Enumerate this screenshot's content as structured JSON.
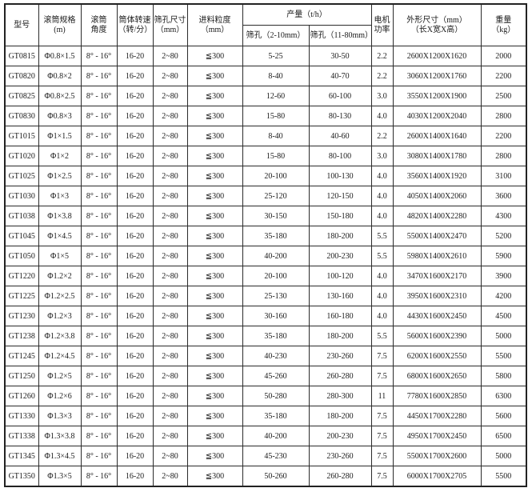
{
  "table": {
    "headers": {
      "model": "型号",
      "drum_spec_line1": "滚筒规格",
      "drum_spec_line2": "(m)",
      "drum_angle_line1": "滚筒",
      "drum_angle_line2": "角度",
      "speed_line1": "筒体转速",
      "speed_line2": "（转/分）",
      "hole_line1": "筛孔尺寸",
      "hole_line2": "（mm）",
      "feed_line1": "进料粒度",
      "feed_line2": "（mm）",
      "output_group": "产量（t/h）",
      "output_sub1": "筛孔（2-10mm）",
      "output_sub2": "筛孔（11-80mm）",
      "power_line1": "电机",
      "power_line2": "功率",
      "dims_line1": "外形尺寸（mm）",
      "dims_line2": "（长X宽X高）",
      "weight_line1": "重量",
      "weight_line2": "（kg）"
    },
    "rows": [
      [
        "GT0815",
        "Φ0.8×1.5",
        "8° - 16°",
        "16-20",
        "2~80",
        "≦300",
        "5-25",
        "30-50",
        "2.2",
        "2600X1200X1620",
        "2000"
      ],
      [
        "GT0820",
        "Φ0.8×2",
        "8° - 16°",
        "16-20",
        "2~80",
        "≦300",
        "8-40",
        "40-70",
        "2.2",
        "3060X1200X1760",
        "2200"
      ],
      [
        "GT0825",
        "Φ0.8×2.5",
        "8° - 16°",
        "16-20",
        "2~80",
        "≦300",
        "12-60",
        "60-100",
        "3.0",
        "3550X1200X1900",
        "2500"
      ],
      [
        "GT0830",
        "Φ0.8×3",
        "8° - 16°",
        "16-20",
        "2~80",
        "≦300",
        "15-80",
        "80-130",
        "4.0",
        "4030X1200X2040",
        "2800"
      ],
      [
        "GT1015",
        "Φ1×1.5",
        "8° - 16°",
        "16-20",
        "2~80",
        "≦300",
        "8-40",
        "40-60",
        "2.2",
        "2600X1400X1640",
        "2200"
      ],
      [
        "GT1020",
        "Φ1×2",
        "8° - 16°",
        "16-20",
        "2~80",
        "≦300",
        "15-80",
        "80-100",
        "3.0",
        "3080X1400X1780",
        "2800"
      ],
      [
        "GT1025",
        "Φ1×2.5",
        "8° - 16°",
        "16-20",
        "2~80",
        "≦300",
        "20-100",
        "100-130",
        "4.0",
        "3560X1400X1920",
        "3100"
      ],
      [
        "GT1030",
        "Φ1×3",
        "8° - 16°",
        "16-20",
        "2~80",
        "≦300",
        "25-120",
        "120-150",
        "4.0",
        "4050X1400X2060",
        "3600"
      ],
      [
        "GT1038",
        "Φ1×3.8",
        "8° - 16°",
        "16-20",
        "2~80",
        "≦300",
        "30-150",
        "150-180",
        "4.0",
        "4820X1400X2280",
        "4300"
      ],
      [
        "GT1045",
        "Φ1×4.5",
        "8° - 16°",
        "16-20",
        "2~80",
        "≦300",
        "35-180",
        "180-200",
        "5.5",
        "5500X1400X2470",
        "5200"
      ],
      [
        "GT1050",
        "Φ1×5",
        "8° - 16°",
        "16-20",
        "2~80",
        "≦300",
        "40-200",
        "200-230",
        "5.5",
        "5980X1400X2610",
        "5900"
      ],
      [
        "GT1220",
        "Φ1.2×2",
        "8° - 16°",
        "16-20",
        "2~80",
        "≦300",
        "20-100",
        "100-120",
        "4.0",
        "3470X1600X2170",
        "3900"
      ],
      [
        "GT1225",
        "Φ1.2×2.5",
        "8° - 16°",
        "16-20",
        "2~80",
        "≦300",
        "25-130",
        "130-160",
        "4.0",
        "3950X1600X2310",
        "4200"
      ],
      [
        "GT1230",
        "Φ1.2×3",
        "8° - 16°",
        "16-20",
        "2~80",
        "≦300",
        "30-160",
        "160-180",
        "4.0",
        "4430X1600X2450",
        "4500"
      ],
      [
        "GT1238",
        "Φ1.2×3.8",
        "8° - 16°",
        "16-20",
        "2~80",
        "≦300",
        "35-180",
        "180-200",
        "5.5",
        "5600X1600X2390",
        "5000"
      ],
      [
        "GT1245",
        "Φ1.2×4.5",
        "8° - 16°",
        "16-20",
        "2~80",
        "≦300",
        "40-230",
        "230-260",
        "7.5",
        "6200X1600X2550",
        "5500"
      ],
      [
        "GT1250",
        "Φ1.2×5",
        "8° - 16°",
        "16-20",
        "2~80",
        "≦300",
        "45-260",
        "260-280",
        "7.5",
        "6800X1600X2650",
        "5800"
      ],
      [
        "GT1260",
        "Φ1.2×6",
        "8° - 16°",
        "16-20",
        "2~80",
        "≦300",
        "50-280",
        "280-300",
        "11",
        "7780X1600X2850",
        "6300"
      ],
      [
        "GT1330",
        "Φ1.3×3",
        "8° - 16°",
        "16-20",
        "2~80",
        "≦300",
        "35-180",
        "180-200",
        "7.5",
        "4450X1700X2280",
        "5600"
      ],
      [
        "GT1338",
        "Φ1.3×3.8",
        "8° - 16°",
        "16-20",
        "2~80",
        "≦300",
        "40-200",
        "200-230",
        "7.5",
        "4950X1700X2450",
        "6500"
      ],
      [
        "GT1345",
        "Φ1.3×4.5",
        "8° - 16°",
        "16-20",
        "2~80",
        "≦300",
        "45-230",
        "230-260",
        "7.5",
        "5500X1700X2600",
        "5000"
      ],
      [
        "GT1350",
        "Φ1.3×5",
        "8° - 16°",
        "16-20",
        "2~80",
        "≦300",
        "50-260",
        "260-280",
        "7.5",
        "6000X1700X2705",
        "5500"
      ]
    ]
  }
}
